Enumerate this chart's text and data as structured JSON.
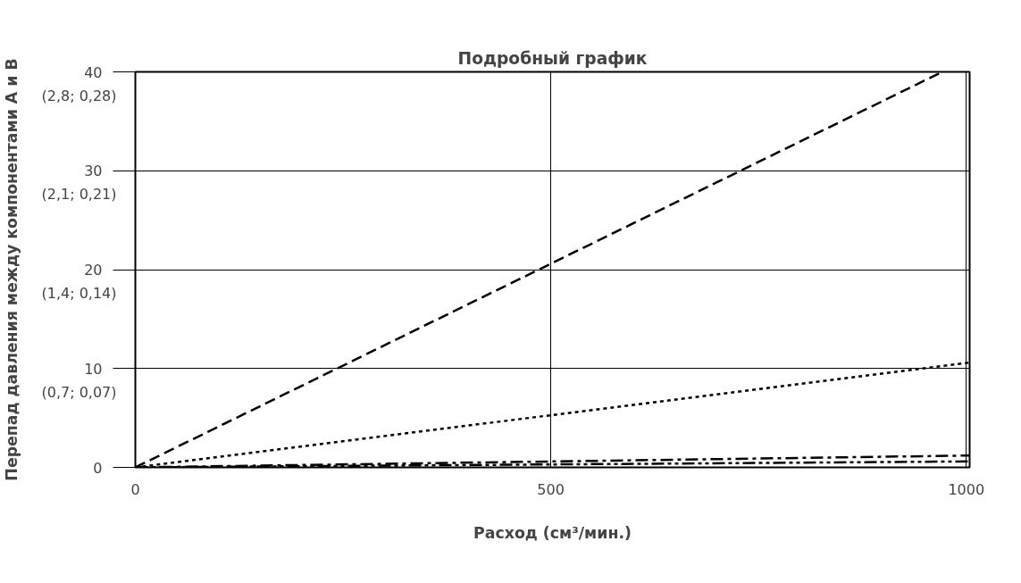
{
  "chart_data": {
    "type": "line",
    "title": "Подробный график",
    "xlabel": "Расход (см³/мин.)",
    "ylabel": "Перепад давления между компонентами А и В",
    "xlim": [
      0,
      1004
    ],
    "xticks": [
      0,
      500,
      1000
    ],
    "ylim": [
      0,
      40
    ],
    "yticks": [
      0,
      10,
      20,
      30,
      40
    ],
    "annotations": [
      "(0,7; 0,07)",
      "(1,4; 0,14)",
      "(2,1; 0,21)",
      "(2,8; 0,28)"
    ],
    "grid": true,
    "marker": "none",
    "series": [
      {
        "color": "#000000",
        "line_style": "dashed",
        "x": [
          0,
          971
        ],
        "values": [
          0,
          40
        ]
      },
      {
        "color": "#000000",
        "line_style": "dotted",
        "x": [
          0,
          1004
        ],
        "values": [
          0,
          10.6
        ]
      },
      {
        "color": "#000000",
        "line_style": "dashdot",
        "x": [
          0,
          1004
        ],
        "values": [
          0,
          1.2
        ]
      },
      {
        "color": "#000000",
        "line_style": "dashdotdot",
        "x": [
          0,
          1004
        ],
        "values": [
          0,
          0.6
        ]
      }
    ]
  }
}
